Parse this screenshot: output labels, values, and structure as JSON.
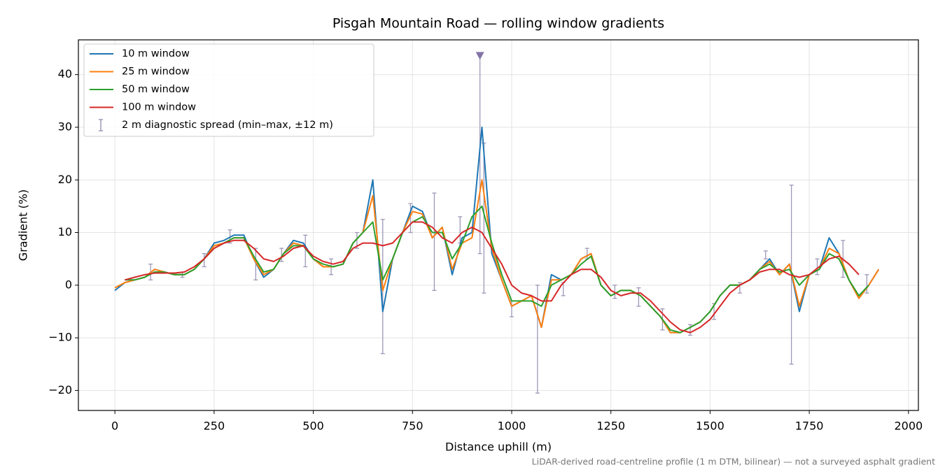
{
  "chart_data": {
    "type": "line",
    "title": "Pisgah Mountain Road — rolling window gradients",
    "xlabel": "Distance uphill (m)",
    "ylabel": "Gradient (%)",
    "footnote": "LiDAR-derived road-centreline profile (1 m DTM, bilinear) — not a surveyed asphalt gradient",
    "xlim": [
      -92,
      2025
    ],
    "ylim": [
      -23.8,
      46.6
    ],
    "xticks": [
      0,
      250,
      500,
      750,
      1000,
      1250,
      1500,
      1750,
      2000
    ],
    "yticks": [
      {
        "value": -20,
        "label": "−20"
      },
      {
        "value": -10,
        "label": "−10"
      },
      0,
      10,
      20,
      30,
      40
    ],
    "grid": true,
    "legend": "upper-left",
    "x": [
      0,
      25,
      50,
      75,
      100,
      125,
      150,
      175,
      200,
      225,
      250,
      275,
      300,
      325,
      350,
      375,
      400,
      425,
      450,
      475,
      500,
      525,
      550,
      575,
      600,
      625,
      650,
      675,
      700,
      725,
      750,
      775,
      800,
      825,
      850,
      875,
      900,
      925,
      950,
      975,
      1000,
      1025,
      1050,
      1075,
      1100,
      1125,
      1150,
      1175,
      1200,
      1225,
      1250,
      1275,
      1300,
      1325,
      1350,
      1375,
      1400,
      1425,
      1450,
      1475,
      1500,
      1525,
      1550,
      1575,
      1600,
      1625,
      1650,
      1675,
      1700,
      1725,
      1750,
      1775,
      1800,
      1825,
      1850,
      1875,
      1900,
      1925
    ],
    "series": [
      {
        "name": "10 m window",
        "color": "#1f77b4",
        "values": [
          -1,
          0.5,
          1,
          1.5,
          3,
          2.5,
          2,
          2,
          3,
          5,
          8,
          8.5,
          9.5,
          9.5,
          5,
          1.5,
          3,
          6,
          8.5,
          8,
          5,
          3.5,
          3.5,
          4,
          8,
          10,
          20,
          -5,
          5,
          10,
          15,
          14,
          9,
          11,
          2,
          9,
          10,
          30,
          6,
          1,
          -4,
          -3,
          -2,
          -8,
          2,
          1,
          2,
          5,
          6,
          0,
          -2,
          -1,
          -1,
          -2,
          -4,
          -6,
          -9,
          -9,
          -8,
          -7,
          -5,
          -2,
          0,
          0,
          1,
          3,
          5,
          2,
          4,
          -5,
          2,
          3,
          9,
          6,
          1,
          -2.5,
          0,
          3
        ]
      },
      {
        "name": "25 m window",
        "color": "#ff7f0e",
        "values": [
          -0.5,
          0.5,
          1,
          1.5,
          3,
          2.5,
          2,
          2,
          3,
          5,
          7.5,
          8,
          9,
          9,
          5,
          2,
          3,
          6,
          8,
          7.5,
          5,
          3.5,
          3.5,
          4,
          8,
          10,
          17,
          -1,
          5,
          10,
          14,
          13.5,
          9,
          11,
          3,
          8,
          9,
          20,
          7,
          1,
          -4,
          -3,
          -2,
          -8,
          1,
          1,
          2,
          5,
          6,
          0,
          -2,
          -1,
          -1,
          -2,
          -4,
          -6,
          -9,
          -9,
          -8,
          -7,
          -5,
          -2,
          0,
          0,
          1,
          3,
          4.5,
          2,
          4,
          -4,
          2,
          3,
          7,
          6,
          1,
          -2.5,
          0,
          3
        ]
      },
      {
        "name": "50 m window",
        "color": "#2ca02c",
        "values": [
          null,
          1,
          1,
          1.5,
          2.5,
          2.5,
          2,
          2,
          3,
          5,
          7,
          8,
          9,
          9,
          5.5,
          2.5,
          3,
          6,
          7.5,
          7.5,
          5,
          4,
          3.5,
          4,
          8,
          10,
          12,
          1,
          5,
          10,
          12,
          13,
          10,
          10,
          5,
          8,
          13,
          15,
          8,
          2,
          -3,
          -3,
          -3,
          -4,
          0,
          1,
          2,
          4,
          5.5,
          0,
          -2,
          -1,
          -1,
          -2,
          -4,
          -6,
          -8.5,
          -9,
          -8,
          -7,
          -5,
          -2,
          0,
          0,
          1,
          3,
          4,
          2.5,
          3,
          0,
          2,
          3,
          6,
          5,
          1,
          -2,
          0,
          null
        ]
      },
      {
        "name": "100 m window",
        "color": "#d62728",
        "values": [
          null,
          1,
          1.5,
          2,
          2.3,
          2.3,
          2.3,
          2.5,
          3.5,
          5,
          7,
          8,
          8.5,
          8.5,
          7,
          5,
          4.5,
          5.5,
          7,
          7.5,
          5.5,
          4.5,
          4,
          4.5,
          7,
          8,
          8,
          7.5,
          8,
          10,
          12,
          12,
          11,
          9,
          8,
          10,
          11,
          10,
          7,
          4,
          0,
          -1.5,
          -2,
          -3,
          -3,
          0,
          2,
          3,
          3,
          1.5,
          -1,
          -2,
          -1.5,
          -1.5,
          -3,
          -5,
          -7,
          -8.5,
          -9,
          -8,
          -6.5,
          -4,
          -1.5,
          0,
          1,
          2.5,
          3,
          3,
          2,
          1.5,
          2,
          3.5,
          5,
          5.5,
          4,
          2,
          null,
          null
        ]
      }
    ],
    "errorbars": {
      "name": "2 m diagnostic spread (min–max, ±12 m)",
      "color": "#9e97b8",
      "x": [
        90,
        170,
        225,
        290,
        355,
        420,
        480,
        545,
        610,
        675,
        745,
        805,
        870,
        920,
        930,
        1000,
        1065,
        1130,
        1190,
        1260,
        1320,
        1380,
        1450,
        1510,
        1575,
        1640,
        1705,
        1770,
        1835,
        1895
      ],
      "low": [
        1,
        1.5,
        3.5,
        8,
        1,
        4.5,
        3.5,
        2,
        7,
        -13,
        10,
        -1,
        8,
        6,
        -1.5,
        -6,
        -20.5,
        -2,
        5,
        -2.5,
        -4,
        -8.5,
        -9.5,
        -6.5,
        -1.5,
        5,
        -15,
        2,
        1.5,
        -1.5
      ],
      "high": [
        4,
        2.5,
        6,
        10.5,
        7,
        7,
        9.5,
        5,
        10,
        12.5,
        15.5,
        17.5,
        13,
        43.5,
        27,
        -3,
        0,
        0.5,
        7,
        0,
        -0.5,
        -4.5,
        -7.5,
        -3.5,
        0.5,
        6.5,
        19,
        5,
        8.5,
        2
      ]
    },
    "peak_marker": {
      "x": 920,
      "y": 43.5,
      "color": "#8474a6"
    }
  }
}
